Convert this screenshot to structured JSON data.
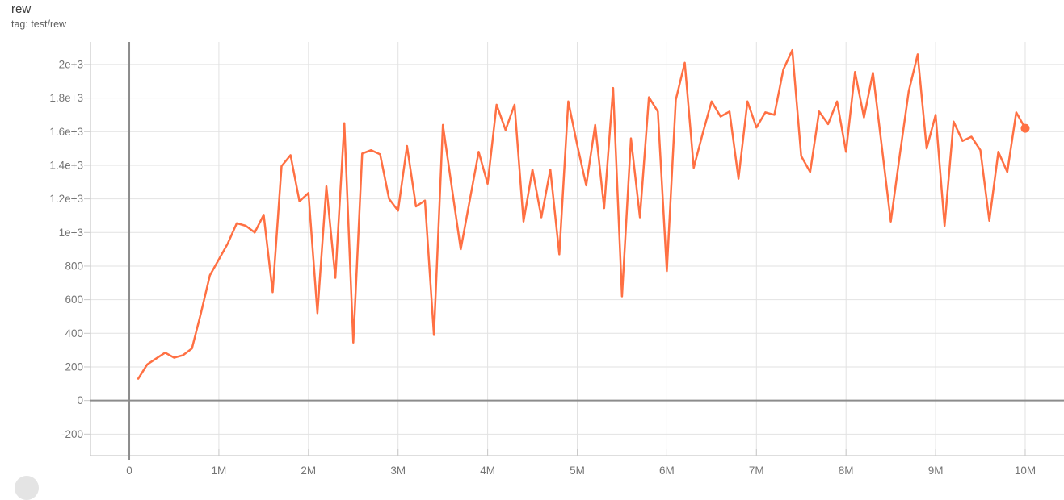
{
  "header": {
    "title": "rew",
    "subtitle": "tag: test/rew"
  },
  "colors": {
    "series": "#ff7043",
    "grid": "#e2e2e2",
    "border": "#c9c9c9",
    "zero_axis": "#8c8c8c",
    "tick_label": "#757575"
  },
  "chart_data": {
    "type": "line",
    "title": "rew",
    "xlabel": "",
    "ylabel": "",
    "legend": "none",
    "grid": true,
    "xlim": [
      -0.433,
      10.433
    ],
    "ylim": [
      -328,
      2134
    ],
    "x_axis": {
      "unit": "steps (millions)",
      "zero_line_m": 0,
      "ticks": [
        {
          "label": "0",
          "m": 0
        },
        {
          "label": "1M",
          "m": 1
        },
        {
          "label": "2M",
          "m": 2
        },
        {
          "label": "3M",
          "m": 3
        },
        {
          "label": "4M",
          "m": 4
        },
        {
          "label": "5M",
          "m": 5
        },
        {
          "label": "6M",
          "m": 6
        },
        {
          "label": "7M",
          "m": 7
        },
        {
          "label": "8M",
          "m": 8
        },
        {
          "label": "9M",
          "m": 9
        },
        {
          "label": "10M",
          "m": 10
        }
      ]
    },
    "y_axis": {
      "zero_line_v": 0,
      "ticks": [
        {
          "label": "-200",
          "v": -200
        },
        {
          "label": "0",
          "v": 0
        },
        {
          "label": "200",
          "v": 200
        },
        {
          "label": "400",
          "v": 400
        },
        {
          "label": "600",
          "v": 600
        },
        {
          "label": "800",
          "v": 800
        },
        {
          "label": "1e+3",
          "v": 1000
        },
        {
          "label": "1.2e+3",
          "v": 1200
        },
        {
          "label": "1.4e+3",
          "v": 1400
        },
        {
          "label": "1.6e+3",
          "v": 1600
        },
        {
          "label": "1.8e+3",
          "v": 1800
        },
        {
          "label": "2e+3",
          "v": 2000
        }
      ]
    },
    "series": [
      {
        "name": "test/rew",
        "color": "#ff7043",
        "end_marker": true,
        "final_value": 1620,
        "points": [
          [
            0.1,
            130
          ],
          [
            0.2,
            215
          ],
          [
            0.3,
            250
          ],
          [
            0.4,
            285
          ],
          [
            0.5,
            255
          ],
          [
            0.6,
            270
          ],
          [
            0.7,
            310
          ],
          [
            0.8,
            520
          ],
          [
            0.9,
            745
          ],
          [
            1.0,
            840
          ],
          [
            1.1,
            935
          ],
          [
            1.2,
            1055
          ],
          [
            1.3,
            1040
          ],
          [
            1.4,
            1000
          ],
          [
            1.5,
            1105
          ],
          [
            1.6,
            645
          ],
          [
            1.7,
            1395
          ],
          [
            1.8,
            1460
          ],
          [
            1.9,
            1185
          ],
          [
            2.0,
            1235
          ],
          [
            2.1,
            520
          ],
          [
            2.2,
            1275
          ],
          [
            2.3,
            730
          ],
          [
            2.4,
            1650
          ],
          [
            2.5,
            345
          ],
          [
            2.6,
            1470
          ],
          [
            2.7,
            1490
          ],
          [
            2.8,
            1465
          ],
          [
            2.9,
            1200
          ],
          [
            3.0,
            1130
          ],
          [
            3.1,
            1515
          ],
          [
            3.2,
            1155
          ],
          [
            3.3,
            1190
          ],
          [
            3.4,
            390
          ],
          [
            3.5,
            1640
          ],
          [
            3.6,
            1270
          ],
          [
            3.7,
            900
          ],
          [
            3.8,
            1190
          ],
          [
            3.9,
            1480
          ],
          [
            4.0,
            1290
          ],
          [
            4.1,
            1760
          ],
          [
            4.2,
            1610
          ],
          [
            4.3,
            1760
          ],
          [
            4.4,
            1065
          ],
          [
            4.5,
            1375
          ],
          [
            4.6,
            1090
          ],
          [
            4.7,
            1375
          ],
          [
            4.8,
            870
          ],
          [
            4.9,
            1780
          ],
          [
            5.0,
            1520
          ],
          [
            5.1,
            1280
          ],
          [
            5.2,
            1640
          ],
          [
            5.3,
            1145
          ],
          [
            5.4,
            1860
          ],
          [
            5.5,
            620
          ],
          [
            5.6,
            1560
          ],
          [
            5.7,
            1090
          ],
          [
            5.8,
            1805
          ],
          [
            5.9,
            1720
          ],
          [
            6.0,
            770
          ],
          [
            6.1,
            1790
          ],
          [
            6.2,
            2010
          ],
          [
            6.3,
            1385
          ],
          [
            6.4,
            1590
          ],
          [
            6.5,
            1780
          ],
          [
            6.6,
            1690
          ],
          [
            6.7,
            1720
          ],
          [
            6.8,
            1320
          ],
          [
            6.9,
            1780
          ],
          [
            7.0,
            1625
          ],
          [
            7.1,
            1715
          ],
          [
            7.2,
            1700
          ],
          [
            7.3,
            1970
          ],
          [
            7.4,
            2085
          ],
          [
            7.5,
            1455
          ],
          [
            7.6,
            1360
          ],
          [
            7.7,
            1720
          ],
          [
            7.8,
            1645
          ],
          [
            7.9,
            1780
          ],
          [
            8.0,
            1480
          ],
          [
            8.1,
            1955
          ],
          [
            8.2,
            1685
          ],
          [
            8.3,
            1950
          ],
          [
            8.4,
            1510
          ],
          [
            8.5,
            1065
          ],
          [
            8.6,
            1460
          ],
          [
            8.7,
            1840
          ],
          [
            8.8,
            2060
          ],
          [
            8.9,
            1500
          ],
          [
            9.0,
            1700
          ],
          [
            9.1,
            1040
          ],
          [
            9.2,
            1660
          ],
          [
            9.3,
            1545
          ],
          [
            9.4,
            1570
          ],
          [
            9.5,
            1490
          ],
          [
            9.6,
            1070
          ],
          [
            9.7,
            1480
          ],
          [
            9.8,
            1360
          ],
          [
            9.9,
            1715
          ],
          [
            10.0,
            1620
          ]
        ]
      }
    ]
  }
}
